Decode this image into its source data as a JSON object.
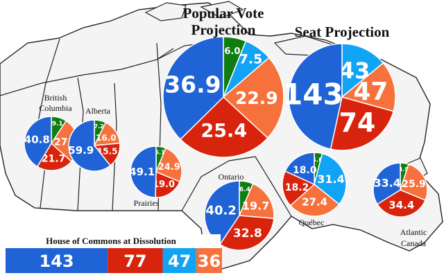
{
  "colors": {
    "blue": "#1f63d6",
    "red": "#d8240c",
    "orange": "#f7713c",
    "lightblue": "#11a4f5",
    "green": "#0f7d12",
    "land": "#f4f4f4",
    "border": "#222222"
  },
  "chart_data": {
    "type": "pie",
    "series_colors": [
      "blue",
      "red",
      "orange",
      "lightblue",
      "green"
    ],
    "charts": [
      {
        "id": "popular",
        "title": [
          "Popular Vote",
          "Projection"
        ],
        "slices": [
          {
            "color": "blue",
            "value": 36.9,
            "label": "36.9"
          },
          {
            "color": "red",
            "value": 25.4,
            "label": "25.4"
          },
          {
            "color": "orange",
            "value": 22.9,
            "label": "22.9"
          },
          {
            "color": "lightblue",
            "value": 7.5,
            "label": "7.5"
          },
          {
            "color": "green",
            "value": 6.0,
            "label": "6.0"
          }
        ]
      },
      {
        "id": "seat",
        "title": [
          "Seat Projection"
        ],
        "slices": [
          {
            "color": "blue",
            "value": 143,
            "label": "143"
          },
          {
            "color": "red",
            "value": 74,
            "label": "74"
          },
          {
            "color": "orange",
            "value": 47,
            "label": "47"
          },
          {
            "color": "lightblue",
            "value": 43,
            "label": "43"
          }
        ]
      },
      {
        "id": "bc",
        "title": [
          "British",
          "Columbia"
        ],
        "slices": [
          {
            "color": "blue",
            "value": 40.8,
            "label": "40.8"
          },
          {
            "color": "red",
            "value": 21.7,
            "label": "21.7"
          },
          {
            "color": "orange",
            "value": 27.1,
            "label": "27.1"
          },
          {
            "color": "green",
            "value": 9.1,
            "label": "9.1"
          }
        ]
      },
      {
        "id": "alberta",
        "title": [
          "Alberta"
        ],
        "slices": [
          {
            "color": "blue",
            "value": 59.9,
            "label": "59.9"
          },
          {
            "color": "red",
            "value": 15.5,
            "label": "15.5"
          },
          {
            "color": "orange",
            "value": 16.0,
            "label": "16.0"
          },
          {
            "color": "green",
            "value": 7.2,
            "label": "7.2"
          }
        ]
      },
      {
        "id": "prairies",
        "title": [
          "Prairies"
        ],
        "slices": [
          {
            "color": "blue",
            "value": 49.1,
            "label": "49.1"
          },
          {
            "color": "red",
            "value": 19.0,
            "label": "19.0"
          },
          {
            "color": "orange",
            "value": 24.9,
            "label": "24.9"
          },
          {
            "color": "green",
            "value": 6.1,
            "label": "6.1"
          }
        ]
      },
      {
        "id": "ontario",
        "title": [
          "Ontario"
        ],
        "slices": [
          {
            "color": "blue",
            "value": 40.2,
            "label": "40.2"
          },
          {
            "color": "red",
            "value": 32.8,
            "label": "32.8"
          },
          {
            "color": "orange",
            "value": 19.7,
            "label": "19.7"
          },
          {
            "color": "green",
            "value": 6.4,
            "label": "6.4"
          }
        ]
      },
      {
        "id": "quebec",
        "title": [
          "Québec"
        ],
        "slices": [
          {
            "color": "blue",
            "value": 18.0,
            "label": "18.0"
          },
          {
            "color": "red",
            "value": 18.2,
            "label": "18.2"
          },
          {
            "color": "orange",
            "value": 27.4,
            "label": "27.4"
          },
          {
            "color": "lightblue",
            "value": 31.4,
            "label": "31.4"
          },
          {
            "color": "green",
            "value": 4.0,
            "label": "4.0"
          }
        ]
      },
      {
        "id": "atlantic",
        "title": [
          "Atlantic",
          "Canada"
        ],
        "slices": [
          {
            "color": "blue",
            "value": 33.4,
            "label": "33.4"
          },
          {
            "color": "red",
            "value": 34.4,
            "label": "34.4"
          },
          {
            "color": "orange",
            "value": 25.9,
            "label": "25.9"
          },
          {
            "color": "green",
            "value": 4.9,
            "label": "4.9"
          }
        ]
      }
    ],
    "dissolution": {
      "title": "House of Commons at Dissolution",
      "segments": [
        {
          "color": "blue",
          "value": 143,
          "label": "143"
        },
        {
          "color": "red",
          "value": 77,
          "label": "77"
        },
        {
          "color": "lightblue",
          "value": 47,
          "label": "47"
        },
        {
          "color": "orange",
          "value": 36,
          "label": "36"
        }
      ]
    }
  }
}
